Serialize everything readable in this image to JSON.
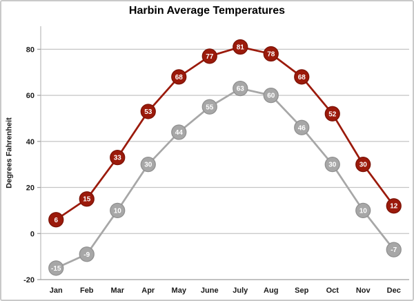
{
  "chart_data": {
    "type": "line",
    "title": "Harbin Average Temperatures",
    "ylabel": "Degrees Fahrenheit",
    "xlabel": "",
    "categories": [
      "Jan",
      "Feb",
      "Mar",
      "Apr",
      "May",
      "June",
      "July",
      "Aug",
      "Sep",
      "Oct",
      "Nov",
      "Dec"
    ],
    "series": [
      {
        "name": "red",
        "color": "#9B1A0B",
        "edge_color": "#7A1105",
        "values": [
          6,
          15,
          33,
          53,
          68,
          77,
          81,
          78,
          68,
          52,
          30,
          12
        ]
      },
      {
        "name": "gray",
        "color": "#A7A7A7",
        "edge_color": "#8F8F8F",
        "values": [
          -15,
          -9,
          10,
          30,
          44,
          55,
          63,
          60,
          46,
          30,
          10,
          -7
        ]
      }
    ],
    "ylim": [
      -20,
      90
    ],
    "yticks": [
      -20,
      0,
      20,
      40,
      60,
      80
    ],
    "grid": true,
    "legend_position": "none",
    "marker_labels_shown": true
  },
  "style": {
    "background": "#FFFFFF",
    "frame_border_color": "#C9C9C9",
    "gridline_color": "#C4C4C4",
    "x_axis_color": "#9E9E9E",
    "y_axis_color": "#C9C9C9",
    "tick_mark_color": "#9E9E9E",
    "tick_text_color": "#1A1A1A",
    "title_color": "#000000",
    "marker_text_color": "#FFFFFF"
  }
}
